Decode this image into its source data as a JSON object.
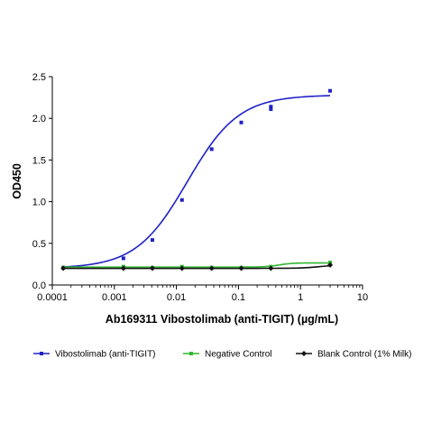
{
  "chart_data": {
    "type": "line",
    "xlabel": "Ab169311 Vibostolimab (anti-TIGIT) (µg/mL)",
    "ylabel": "OD450",
    "x_scale": "log",
    "xlim": [
      0.0001,
      10
    ],
    "ylim": [
      0,
      2.5
    ],
    "x_ticks": [
      0.0001,
      0.001,
      0.01,
      0.1,
      1,
      10
    ],
    "x_tick_labels": [
      "0.0001",
      "0.001",
      "0.01",
      "0.1",
      "1",
      "10"
    ],
    "y_ticks": [
      0,
      0.5,
      1,
      1.5,
      2,
      2.5
    ],
    "y_tick_labels": [
      "0.0",
      "0.5",
      "1.0",
      "1.5",
      "2.0",
      "2.5"
    ],
    "grid": false,
    "legend_position": "bottom",
    "series": [
      {
        "name": "Vibostolimab (anti-TIGIT)",
        "color": "#1f22c4",
        "marker": "square",
        "points": [
          {
            "x": 0.00015,
            "y": 0.21
          },
          {
            "x": 0.0014,
            "y": 0.32
          },
          {
            "x": 0.0041,
            "y": 0.54
          },
          {
            "x": 0.0123,
            "y": 1.02
          },
          {
            "x": 0.037,
            "y": 1.63
          },
          {
            "x": 0.111,
            "y": 1.95
          },
          {
            "x": 0.333,
            "y": 2.11
          },
          {
            "x": 0.333,
            "y": 2.14
          },
          {
            "x": 3.0,
            "y": 2.33
          }
        ],
        "fit": {
          "bottom": 0.2,
          "top": 2.28,
          "ec50": 0.015,
          "hill": 1.05
        }
      },
      {
        "name": "Negative Control",
        "color": "#2fb82f",
        "marker": "square",
        "points": [
          {
            "x": 0.00015,
            "y": 0.21
          },
          {
            "x": 0.0014,
            "y": 0.22
          },
          {
            "x": 0.0041,
            "y": 0.21
          },
          {
            "x": 0.0123,
            "y": 0.22
          },
          {
            "x": 0.037,
            "y": 0.21
          },
          {
            "x": 0.111,
            "y": 0.21
          },
          {
            "x": 0.333,
            "y": 0.22
          },
          {
            "x": 3.0,
            "y": 0.27
          }
        ],
        "fit": {
          "bottom": 0.215,
          "top": 0.265,
          "ec50": 0.45,
          "hill": 4
        }
      },
      {
        "name": "Blank Control (1% Milk)",
        "color": "#111111",
        "marker": "diamond",
        "points": [
          {
            "x": 0.00015,
            "y": 0.2
          },
          {
            "x": 0.0014,
            "y": 0.2
          },
          {
            "x": 0.0041,
            "y": 0.2
          },
          {
            "x": 0.0123,
            "y": 0.2
          },
          {
            "x": 0.037,
            "y": 0.2
          },
          {
            "x": 0.111,
            "y": 0.2
          },
          {
            "x": 0.333,
            "y": 0.2
          },
          {
            "x": 3.0,
            "y": 0.24
          }
        ],
        "fit": {
          "bottom": 0.2,
          "top": 0.24,
          "ec50": 2.0,
          "hill": 3
        }
      }
    ]
  }
}
